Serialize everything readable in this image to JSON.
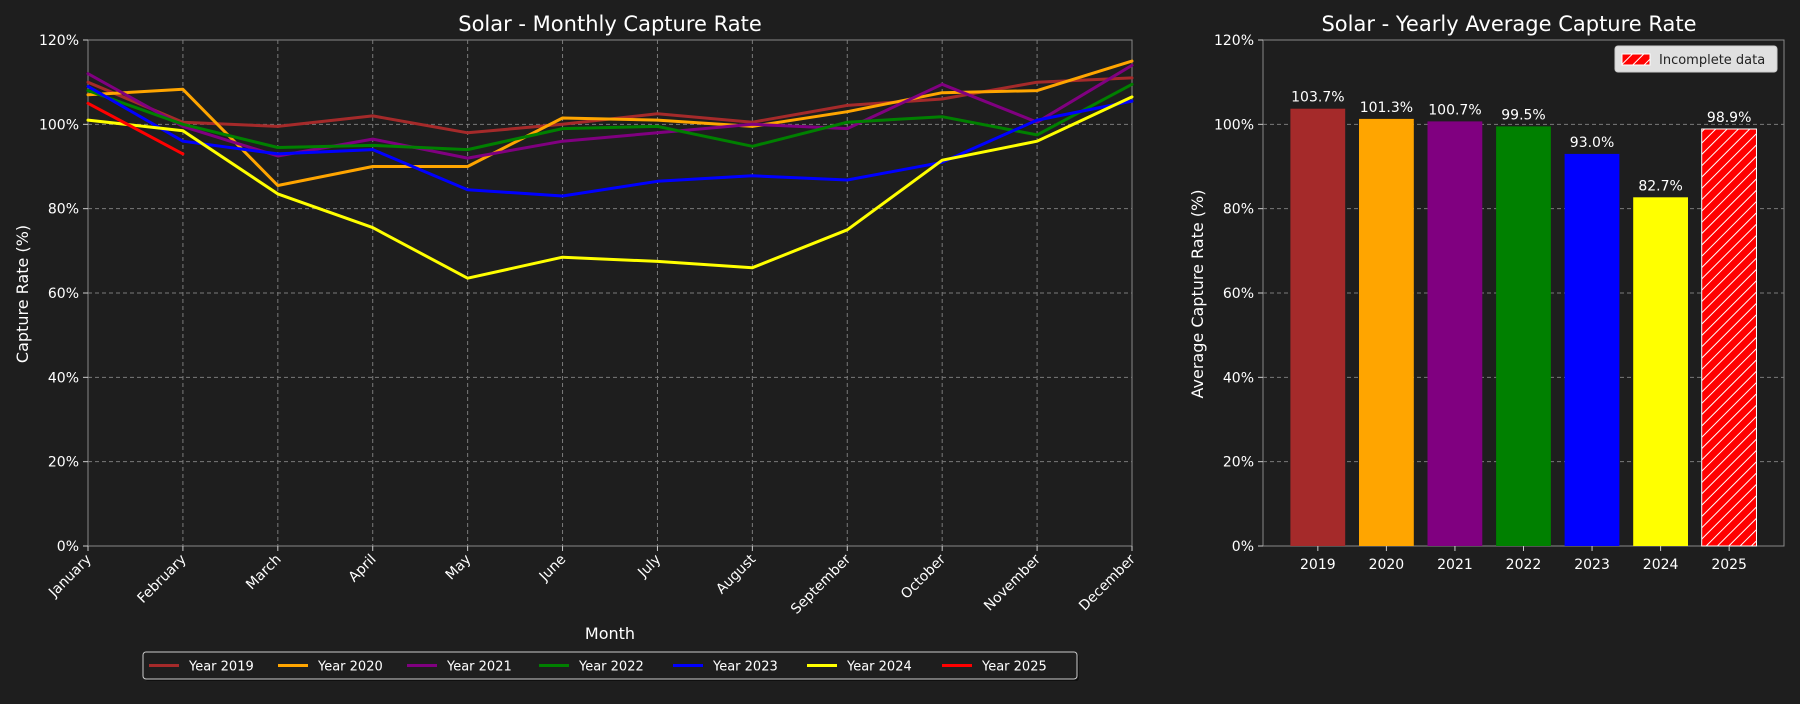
{
  "chart_data": [
    {
      "type": "line",
      "title": "Solar - Monthly Capture Rate",
      "xlabel": "Month",
      "ylabel": "Capture Rate (%)",
      "categories": [
        "January",
        "February",
        "March",
        "April",
        "May",
        "June",
        "July",
        "August",
        "September",
        "October",
        "November",
        "December"
      ],
      "ylim": [
        0,
        120
      ],
      "yticks": [
        0,
        20,
        40,
        60,
        80,
        100,
        120
      ],
      "ytick_suffix": "%",
      "grid": true,
      "legend_position": "bottom-center",
      "series": [
        {
          "name": "Year 2019",
          "color": "#a52a2a",
          "values": [
            110,
            100.5,
            99.5,
            102,
            98,
            100,
            102.5,
            100.5,
            104.5,
            106,
            110,
            111
          ]
        },
        {
          "name": "Year 2020",
          "color": "#ffa500",
          "values": [
            107,
            108.3,
            85.5,
            90,
            90,
            101.5,
            101,
            99.5,
            103,
            107.5,
            108,
            115
          ]
        },
        {
          "name": "Year 2021",
          "color": "#800080",
          "values": [
            112,
            99.5,
            92.5,
            96.5,
            92,
            96,
            98,
            100,
            99,
            109.5,
            100.5,
            114
          ]
        },
        {
          "name": "Year 2022",
          "color": "#008000",
          "values": [
            108,
            100,
            94.5,
            95,
            94,
            99,
            99.5,
            94.8,
            100.5,
            101.8,
            97.5,
            109.5
          ]
        },
        {
          "name": "Year 2023",
          "color": "#0000ff",
          "values": [
            109,
            96,
            93,
            94,
            84.5,
            83,
            86.5,
            87.8,
            86.8,
            91,
            101,
            105.5
          ]
        },
        {
          "name": "Year 2024",
          "color": "#ffff00",
          "values": [
            101,
            98.5,
            83.5,
            75.5,
            63.5,
            68.5,
            67.5,
            66,
            75,
            91.5,
            96,
            106.5
          ]
        },
        {
          "name": "Year 2025",
          "color": "#ff0000",
          "values": [
            105,
            93,
            null,
            null,
            null,
            null,
            null,
            null,
            null,
            null,
            null,
            null
          ]
        }
      ]
    },
    {
      "type": "bar",
      "title": "Solar - Yearly Average Capture Rate",
      "xlabel": "",
      "ylabel": "Average Capture Rate (%)",
      "categories": [
        "2019",
        "2020",
        "2021",
        "2022",
        "2023",
        "2024",
        "2025"
      ],
      "values": [
        103.7,
        101.3,
        100.7,
        99.5,
        93.0,
        82.7,
        98.9
      ],
      "data_labels": [
        "103.7%",
        "101.3%",
        "100.7%",
        "99.5%",
        "93.0%",
        "82.7%",
        "98.9%"
      ],
      "colors": [
        "#a52a2a",
        "#ffa500",
        "#800080",
        "#008000",
        "#0000ff",
        "#ffff00",
        "#ff0000"
      ],
      "hatched": [
        false,
        false,
        false,
        false,
        false,
        false,
        true
      ],
      "ylim": [
        0,
        120
      ],
      "yticks": [
        0,
        20,
        40,
        60,
        80,
        100,
        120
      ],
      "ytick_suffix": "%",
      "grid": true,
      "legend_position": "top-right",
      "legend": [
        "Incomplete data"
      ]
    }
  ]
}
